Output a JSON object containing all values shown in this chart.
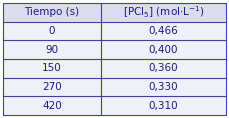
{
  "col1_header": "Tiempo (s)",
  "col2_header": "[PCl₅] (mol·L⁻¹)",
  "rows": [
    [
      "0",
      "0,466"
    ],
    [
      "90",
      "0,400"
    ],
    [
      "150",
      "0,360"
    ],
    [
      "270",
      "0,330"
    ],
    [
      "420",
      "0,310"
    ]
  ],
  "bg_color": "#f0f0f8",
  "header_bg": "#dcdcf0",
  "border_color": "#4040a0",
  "text_color": "#1a1a8c",
  "header_text_color": "#1a1a8c",
  "font_size": 7.5,
  "header_font_size": 7.5,
  "col_split": 0.44,
  "lw": 0.8
}
